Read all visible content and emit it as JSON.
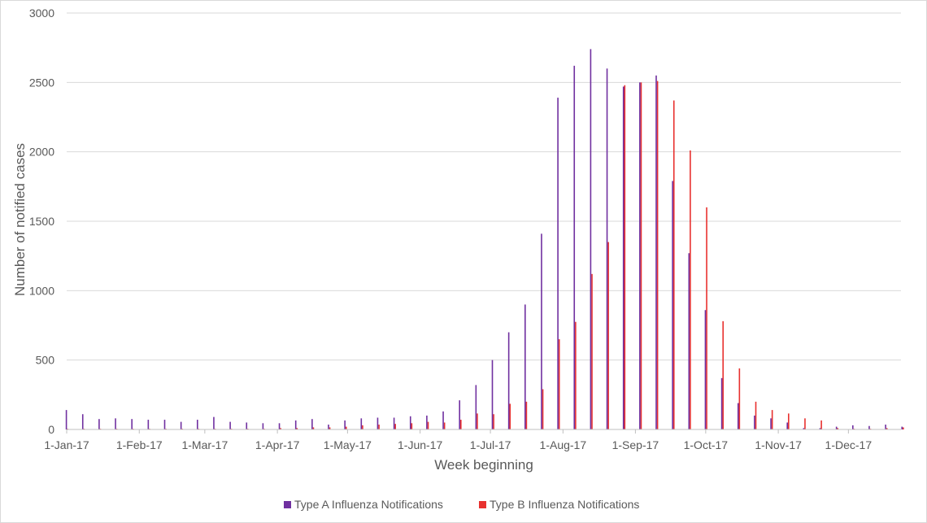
{
  "chart_data": {
    "type": "bar",
    "title": "",
    "xlabel": "Week beginning",
    "ylabel": "Number of notified cases",
    "ylim": [
      0,
      3000
    ],
    "yticks": [
      0,
      500,
      1000,
      1500,
      2000,
      2500,
      3000
    ],
    "grid": true,
    "legend_position": "bottom",
    "x_tick_labels": [
      {
        "label": "1-Jan-17",
        "week": 0
      },
      {
        "label": "1-Feb-17",
        "week": 4.43
      },
      {
        "label": "1-Mar-17",
        "week": 8.43
      },
      {
        "label": "1-Apr-17",
        "week": 12.86
      },
      {
        "label": "1-May-17",
        "week": 17.14
      },
      {
        "label": "1-Jun-17",
        "week": 21.57
      },
      {
        "label": "1-Jul-17",
        "week": 25.86
      },
      {
        "label": "1-Aug-17",
        "week": 30.29
      },
      {
        "label": "1-Sep-17",
        "week": 34.71
      },
      {
        "label": "1-Oct-17",
        "week": 39.0
      },
      {
        "label": "1-Nov-17",
        "week": 43.43
      },
      {
        "label": "1-Dec-17",
        "week": 47.71
      }
    ],
    "series": [
      {
        "name": "Type A Influenza Notifications",
        "color": "#7030A0",
        "values": [
          140,
          110,
          75,
          80,
          75,
          70,
          70,
          55,
          70,
          90,
          55,
          50,
          45,
          45,
          65,
          75,
          35,
          65,
          80,
          85,
          85,
          95,
          100,
          130,
          210,
          320,
          500,
          700,
          900,
          1410,
          2390,
          2620,
          2740,
          2600,
          2470,
          2500,
          2550,
          1790,
          1270,
          860,
          370,
          190,
          100,
          80,
          50,
          10,
          10,
          20,
          30,
          25,
          35,
          20
        ]
      },
      {
        "name": "Type B Influenza Notifications",
        "color": "#E8312F",
        "values": [
          5,
          5,
          5,
          5,
          5,
          5,
          5,
          5,
          5,
          5,
          5,
          5,
          5,
          10,
          10,
          15,
          15,
          20,
          30,
          35,
          40,
          45,
          55,
          50,
          70,
          115,
          110,
          185,
          200,
          290,
          650,
          775,
          1120,
          1350,
          2480,
          2500,
          2510,
          2370,
          2010,
          1600,
          780,
          440,
          200,
          140,
          115,
          80,
          65,
          10,
          5,
          5,
          10,
          15
        ]
      }
    ]
  }
}
